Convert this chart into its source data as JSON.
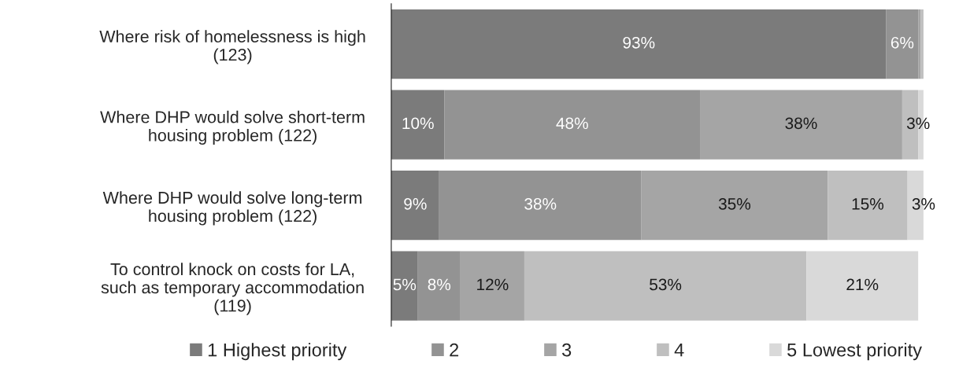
{
  "chart_data": {
    "type": "bar",
    "orientation": "horizontal",
    "stacked": true,
    "categories": [
      "Where risk of homelessness is high\n(123)",
      "Where DHP would solve short-term\nhousing problem (122)",
      "Where DHP would solve long-term\nhousing problem (122)",
      "To control knock on costs for LA,\nsuch as temporary accommodation\n(119)"
    ],
    "series": [
      {
        "name": "1 Highest priority",
        "color": "#7b7b7b",
        "values": [
          93,
          10,
          9,
          5
        ],
        "value_labels": [
          "93%",
          "10%",
          "9%",
          "5%"
        ]
      },
      {
        "name": "2",
        "color": "#939393",
        "values": [
          6,
          48,
          38,
          8
        ],
        "value_labels": [
          "6%",
          "48%",
          "38%",
          "8%"
        ]
      },
      {
        "name": "3",
        "color": "#a5a5a5",
        "values": [
          0.5,
          38,
          35,
          12
        ],
        "value_labels": [
          null,
          "38%",
          "35%",
          "12%"
        ]
      },
      {
        "name": "4",
        "color": "#bfbfbf",
        "values": [
          0.5,
          3,
          15,
          53
        ],
        "value_labels": [
          null,
          "3%",
          "15%",
          "53%"
        ]
      },
      {
        "name": "5 Lowest priority",
        "color": "#d9d9d9",
        "values": [
          0,
          1,
          3,
          21
        ],
        "value_labels": [
          null,
          null,
          "3%",
          "21%"
        ]
      }
    ],
    "xlim": [
      0,
      100
    ],
    "tick_labels": "y",
    "grid": false,
    "legend": "bottom"
  }
}
